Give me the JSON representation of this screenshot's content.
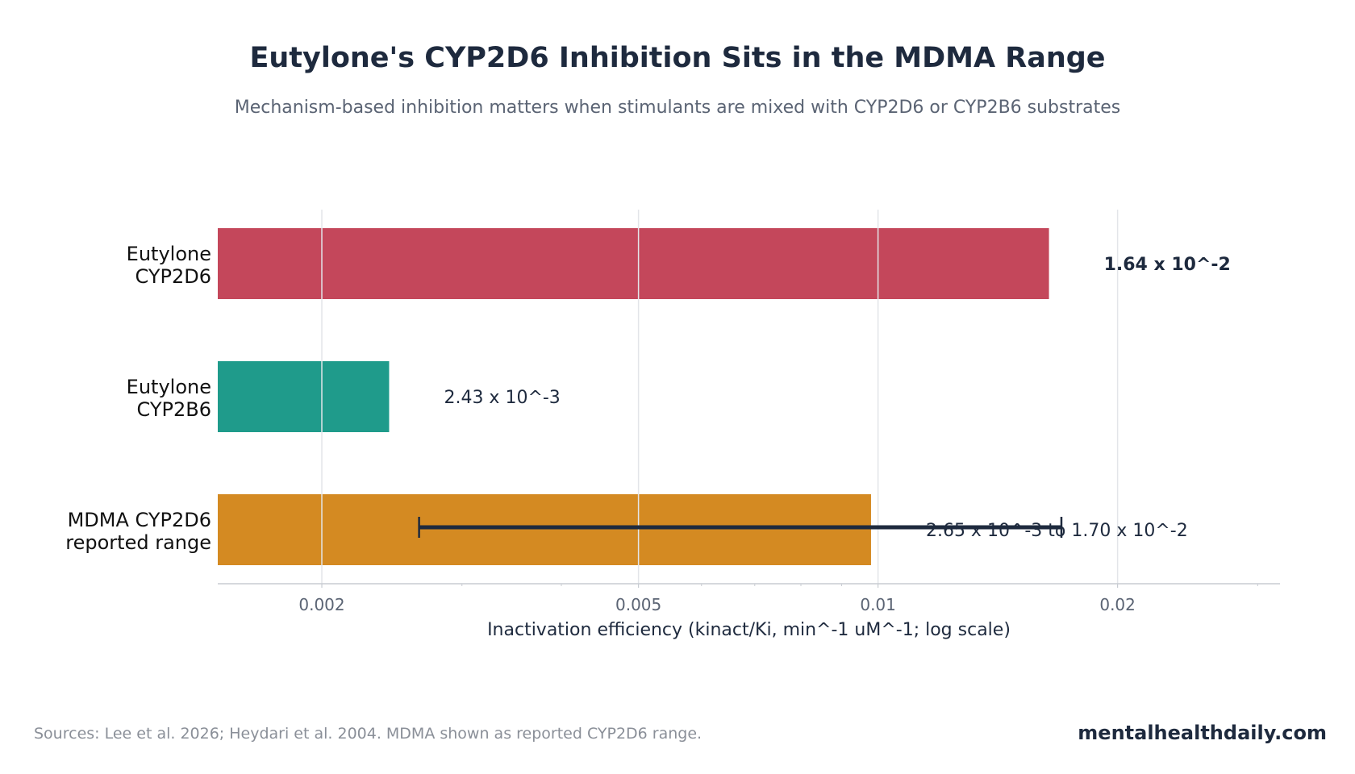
{
  "header": {
    "title": "Eutylone's CYP2D6 Inhibition Sits in the MDMA Range",
    "subtitle": "Mechanism-based inhibition matters when stimulants are mixed with CYP2D6 or CYP2B6 substrates"
  },
  "footer": {
    "source": "Sources: Lee et al. 2026; Heydari et al. 2004. MDMA shown as reported CYP2D6 range.",
    "brand": "mentalhealthdaily.com"
  },
  "chart_data": {
    "type": "bar",
    "orientation": "horizontal",
    "x_scale": "log",
    "xlim": [
      0.00148,
      0.032
    ],
    "xlabel": "Inactivation efficiency (kinact/Ki, min^-1 uM^-1; log scale)",
    "xticks": [
      {
        "value": 0.002,
        "label": "0.002"
      },
      {
        "value": 0.005,
        "label": "0.005"
      },
      {
        "value": 0.01,
        "label": "0.01"
      },
      {
        "value": 0.02,
        "label": "0.02"
      }
    ],
    "grid": "vertical",
    "categories": [
      [
        "Eutylone",
        "CYP2D6"
      ],
      [
        "Eutylone",
        "CYP2B6"
      ],
      [
        "MDMA CYP2D6",
        "reported range"
      ]
    ],
    "bars": [
      {
        "value": 0.0164,
        "color": "#c4475b",
        "label": "1.64 x 10^-2",
        "bold": true
      },
      {
        "value": 0.00243,
        "color": "#1f9b8b",
        "label": "2.43 x 10^-3",
        "bold": false
      },
      {
        "value": 0.0098,
        "color": "#d48a22",
        "label": "2.65 x 10^-3 to 1.70 x 10^-2",
        "bold": false,
        "range": [
          0.00265,
          0.017
        ]
      }
    ],
    "colors": {
      "text": "#1e2a3e",
      "tick_text": "#5b6474",
      "grid": "#e3e5e9",
      "axis": "#c8ccd2",
      "errorbar": "#1e2a3e"
    }
  }
}
